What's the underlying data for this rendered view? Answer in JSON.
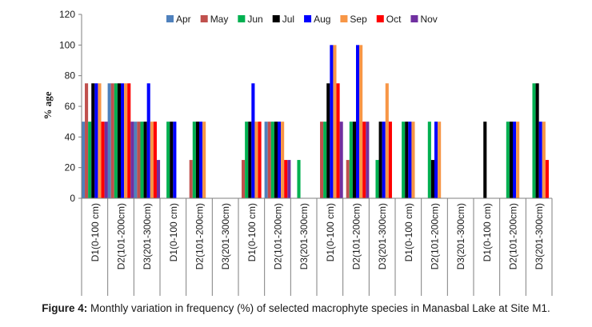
{
  "chart_data": {
    "type": "bar",
    "ylabel": "% age",
    "xlabel": "",
    "ylim": [
      0,
      120
    ],
    "yticks": [
      0,
      20,
      40,
      60,
      80,
      100,
      120
    ],
    "grid": false,
    "legend_position": "top",
    "categories": [
      "D1(0-100 cm)",
      "D2(101-200cm)",
      "D3(201-300cm)",
      "D1(0-100 cm)",
      "D2(101-200cm)",
      "D3(201-300cm)",
      "D1(0-100 cm)",
      "D2(101-200cm)",
      "D3(201-300cm)",
      "D1(0-100 cm)",
      "D2(101-200cm)",
      "D3(201-300cm)",
      "D1(0-100 cm)",
      "D2(101-200cm)",
      "D3(201-300cm)",
      "D1(0-100 cm)",
      "D2(101-200cm)",
      "D3(201-300cm)"
    ],
    "series": [
      {
        "name": "Apr",
        "color": "#4f81bd",
        "values": [
          50,
          75,
          50,
          0,
          0,
          0,
          0,
          50,
          0,
          0,
          0,
          0,
          0,
          0,
          0,
          0,
          0,
          0
        ]
      },
      {
        "name": "May",
        "color": "#c0504d",
        "values": [
          75,
          75,
          50,
          0,
          25,
          0,
          25,
          50,
          0,
          50,
          25,
          0,
          0,
          0,
          0,
          0,
          0,
          0
        ]
      },
      {
        "name": "Jun",
        "color": "#00b050",
        "values": [
          50,
          75,
          50,
          50,
          50,
          0,
          50,
          50,
          25,
          50,
          50,
          25,
          50,
          50,
          0,
          0,
          50,
          75
        ]
      },
      {
        "name": "Jul",
        "color": "#000000",
        "values": [
          75,
          75,
          50,
          50,
          50,
          0,
          50,
          50,
          0,
          75,
          50,
          50,
          50,
          25,
          0,
          50,
          50,
          75
        ]
      },
      {
        "name": "Aug",
        "color": "#0000ff",
        "values": [
          75,
          75,
          75,
          50,
          50,
          0,
          75,
          50,
          0,
          100,
          100,
          50,
          50,
          50,
          0,
          0,
          50,
          50
        ]
      },
      {
        "name": "Sep",
        "color": "#f79646",
        "values": [
          75,
          75,
          50,
          0,
          50,
          0,
          50,
          50,
          0,
          100,
          100,
          75,
          50,
          50,
          0,
          0,
          50,
          50
        ]
      },
      {
        "name": "Oct",
        "color": "#ff0000",
        "values": [
          50,
          75,
          50,
          0,
          0,
          0,
          50,
          25,
          0,
          75,
          50,
          50,
          0,
          0,
          0,
          0,
          0,
          25
        ]
      },
      {
        "name": "Nov",
        "color": "#7030a0",
        "values": [
          50,
          50,
          25,
          0,
          0,
          0,
          0,
          25,
          0,
          50,
          50,
          0,
          0,
          0,
          0,
          0,
          0,
          0
        ]
      }
    ]
  },
  "caption": {
    "label": "Figure 4:",
    "text": " Monthly variation in frequency (%) of selected macrophyte species in Manasbal Lake at Site M1."
  }
}
